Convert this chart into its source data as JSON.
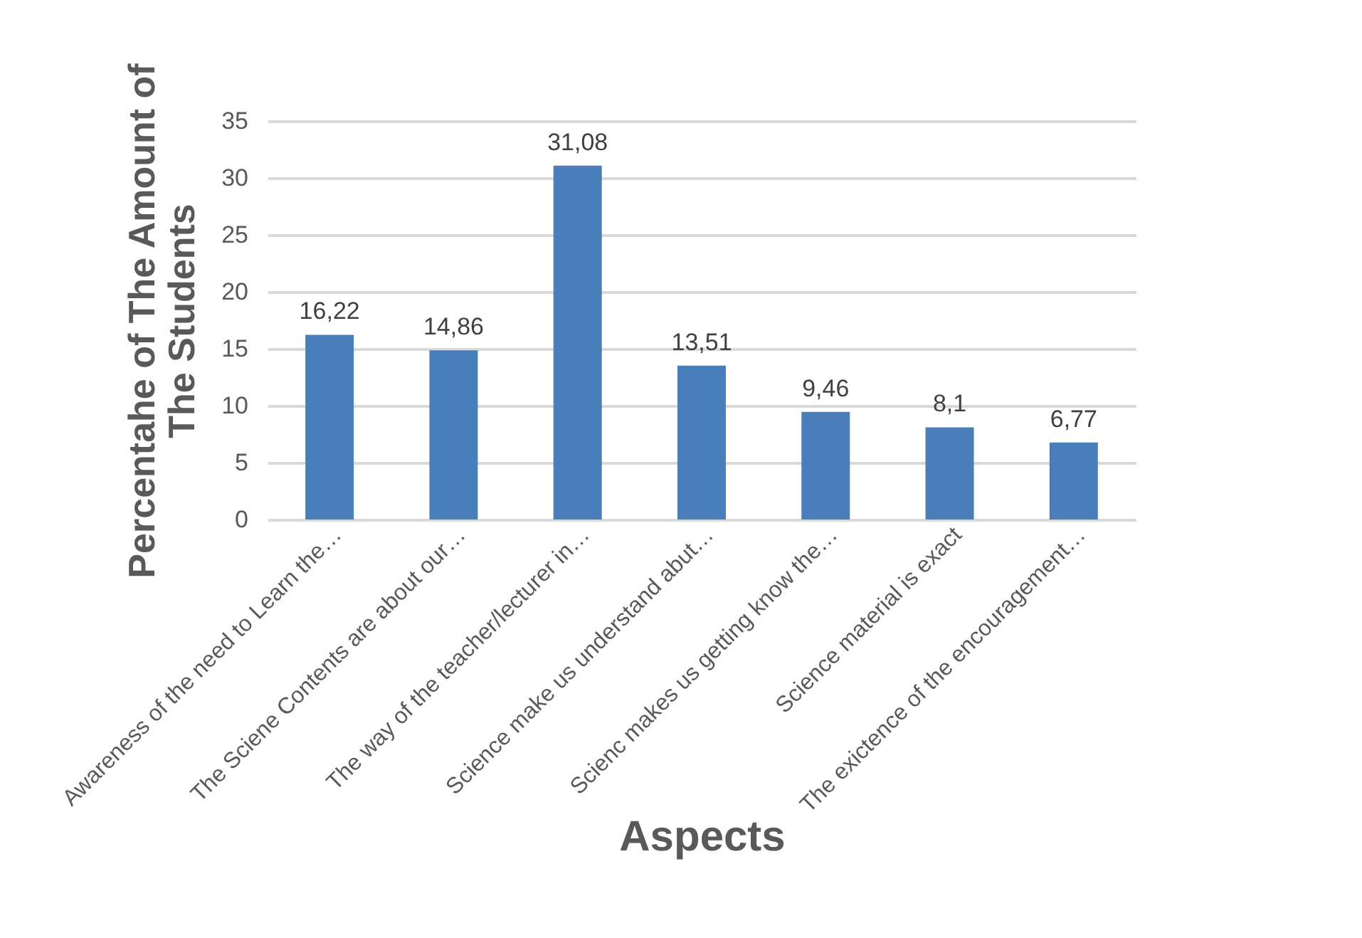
{
  "chart_data": {
    "type": "bar",
    "xlabel": "Aspects",
    "ylabel": [
      "Percentahe  of The Amount of",
      "The Students"
    ],
    "categories": [
      "Awareness of the need to Learn the…",
      "The Sciene Contents are about our…",
      "The way of the teacher/lecturer in…",
      "Science make us understand abut…",
      "Scienc makes us getting know the…",
      "Science material is exact",
      "The exictence of the encouragement…"
    ],
    "values": [
      16.22,
      14.86,
      31.08,
      13.51,
      9.46,
      8.1,
      6.77
    ],
    "value_labels": [
      "16,22",
      "14,86",
      "31,08",
      "13,51",
      "9,46",
      "8,1",
      "6,77"
    ],
    "color": "#4a7ebb",
    "ylim": [
      0,
      35
    ],
    "yticks": [
      0,
      5,
      10,
      15,
      20,
      25,
      30,
      35
    ],
    "grid": true
  }
}
